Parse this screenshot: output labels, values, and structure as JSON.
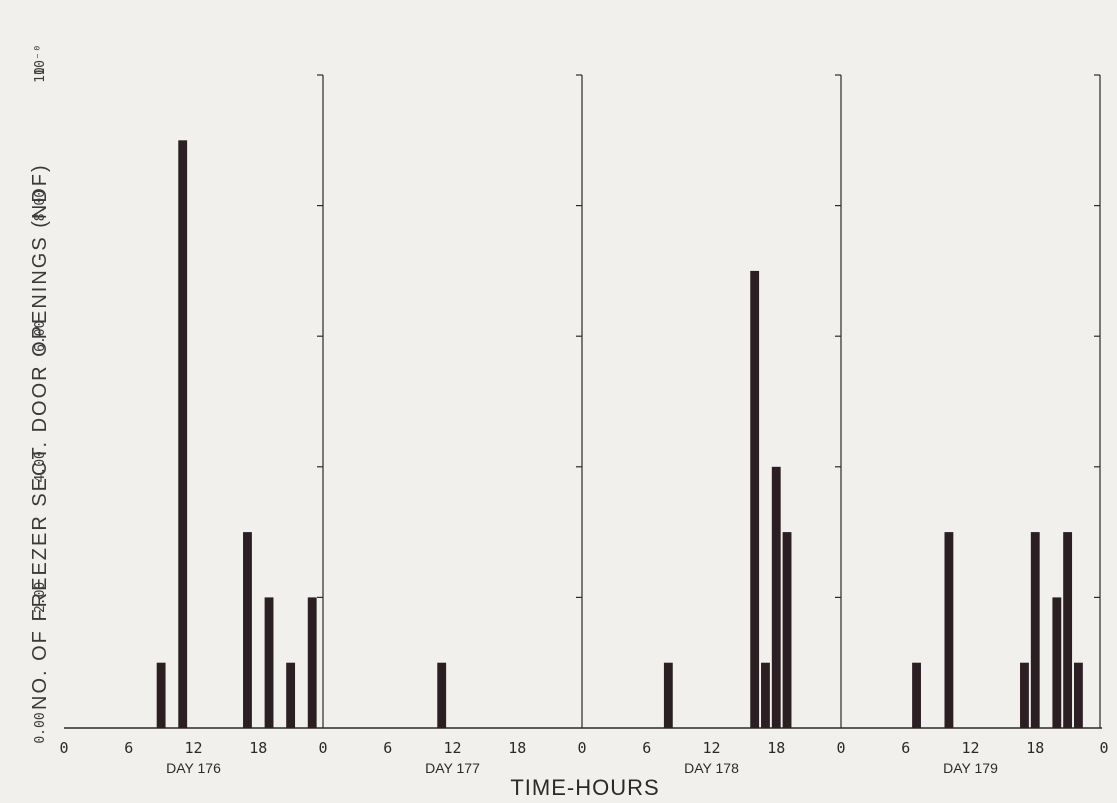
{
  "chart_data": {
    "type": "bar",
    "ylabel": "NO. OF FREEZER SECT. DOOR OPENINGS  (NDF)",
    "xlabel": "TIME-HOURS",
    "y_scale_note": "10⁻⁰",
    "ylim": [
      0,
      10
    ],
    "y_ticks": [
      "0.00",
      "2.00",
      "4.00",
      "6.00",
      "8.00",
      "10"
    ],
    "x_tick_labels": [
      "0",
      "6",
      "12",
      "18"
    ],
    "x_end_label": "0",
    "days": [
      "DAY 176",
      "DAY 177",
      "DAY 178",
      "DAY 179"
    ],
    "bar_color": "#2b1f24",
    "series": [
      {
        "day": "DAY 176",
        "points": [
          {
            "hour": 9,
            "value": 1
          },
          {
            "hour": 11,
            "value": 9
          },
          {
            "hour": 17,
            "value": 3
          },
          {
            "hour": 19,
            "value": 2
          },
          {
            "hour": 21,
            "value": 1
          },
          {
            "hour": 23,
            "value": 2
          }
        ]
      },
      {
        "day": "DAY 177",
        "points": [
          {
            "hour": 11,
            "value": 1
          }
        ]
      },
      {
        "day": "DAY 178",
        "points": [
          {
            "hour": 8,
            "value": 1
          },
          {
            "hour": 16,
            "value": 7
          },
          {
            "hour": 17,
            "value": 1
          },
          {
            "hour": 18,
            "value": 4
          },
          {
            "hour": 19,
            "value": 3
          }
        ]
      },
      {
        "day": "DAY 179",
        "points": [
          {
            "hour": 7,
            "value": 1
          },
          {
            "hour": 10,
            "value": 3
          },
          {
            "hour": 17,
            "value": 1
          },
          {
            "hour": 18,
            "value": 3
          },
          {
            "hour": 20,
            "value": 2
          },
          {
            "hour": 21,
            "value": 3
          },
          {
            "hour": 22,
            "value": 1
          }
        ]
      }
    ]
  }
}
